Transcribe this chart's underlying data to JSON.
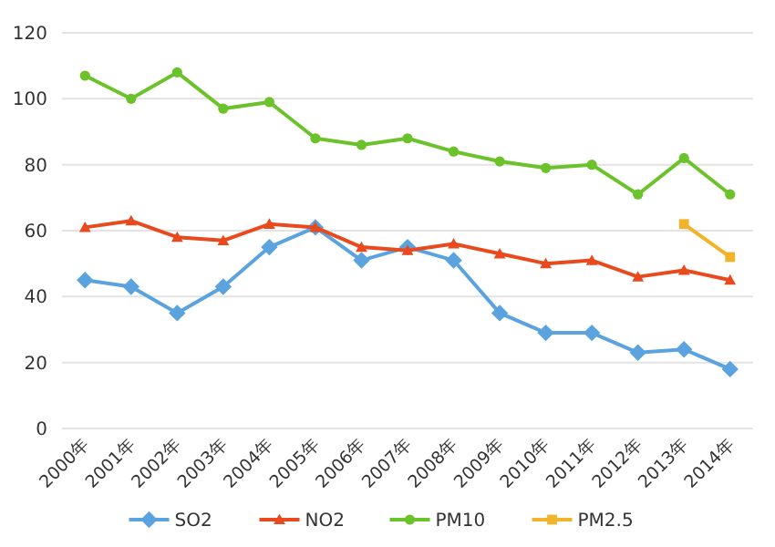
{
  "chart_data": {
    "type": "line",
    "categories": [
      "2000年",
      "2001年",
      "2002年",
      "2003年",
      "2004年",
      "2005年",
      "2006年",
      "2007年",
      "2008年",
      "2009年",
      "2010年",
      "2011年",
      "2012年",
      "2013年",
      "2014年"
    ],
    "series": [
      {
        "name": "SO2",
        "color": "#5ba3de",
        "marker": "diamond",
        "values": [
          45,
          43,
          35,
          43,
          55,
          61,
          51,
          55,
          51,
          35,
          29,
          29,
          23,
          24,
          18
        ]
      },
      {
        "name": "NO2",
        "color": "#e8491d",
        "marker": "triangle",
        "values": [
          61,
          63,
          58,
          57,
          62,
          61,
          55,
          54,
          56,
          53,
          50,
          51,
          46,
          48,
          45
        ]
      },
      {
        "name": "PM10",
        "color": "#6cc22b",
        "marker": "circle",
        "values": [
          107,
          100,
          108,
          97,
          99,
          88,
          86,
          88,
          84,
          81,
          79,
          80,
          71,
          82,
          71
        ]
      },
      {
        "name": "PM2.5",
        "color": "#f0b32a",
        "marker": "square",
        "values": [
          null,
          null,
          null,
          null,
          null,
          null,
          null,
          null,
          null,
          null,
          null,
          null,
          null,
          62,
          52
        ]
      }
    ],
    "ylim": [
      0,
      120
    ],
    "yticks": [
      0,
      20,
      40,
      60,
      80,
      100,
      120
    ],
    "grid": "y",
    "legend": "bottom"
  }
}
